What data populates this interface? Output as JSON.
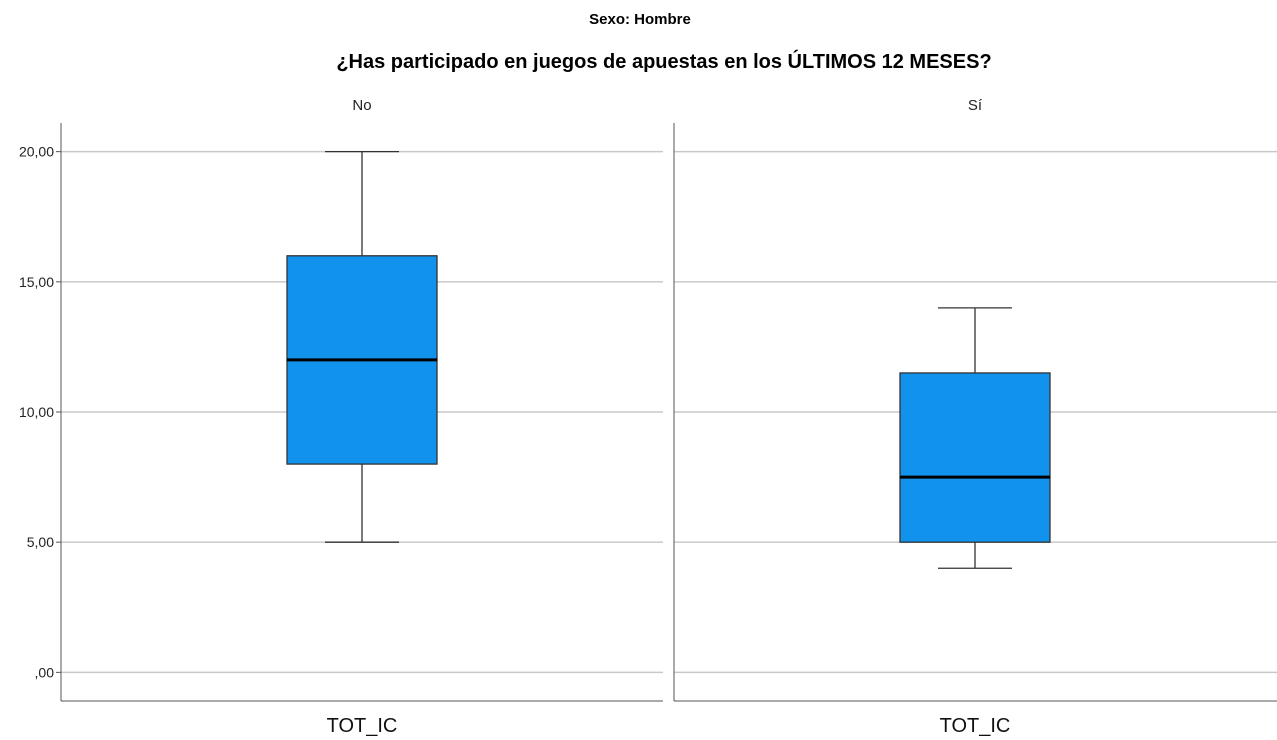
{
  "chart_data": {
    "type": "boxplot",
    "supertitle": "Sexo: Hombre",
    "title": "¿Has participado en juegos de apuestas en los ÚLTIMOS 12 MESES?",
    "ylim": [
      -1.1,
      21.1
    ],
    "yticks": [
      {
        "value": 0,
        "label": ",00"
      },
      {
        "value": 5,
        "label": "5,00"
      },
      {
        "value": 10,
        "label": "10,00"
      },
      {
        "value": 15,
        "label": "15,00"
      },
      {
        "value": 20,
        "label": "20,00"
      }
    ],
    "grid": true,
    "box_color": "#1192ed",
    "panels": [
      {
        "label": "No",
        "category": "TOT_IC",
        "min": 5,
        "q1": 8,
        "median": 12,
        "q3": 16,
        "max": 20
      },
      {
        "label": "Sí",
        "category": "TOT_IC",
        "min": 4,
        "q1": 5,
        "median": 7.5,
        "q3": 11.5,
        "max": 14
      }
    ]
  }
}
